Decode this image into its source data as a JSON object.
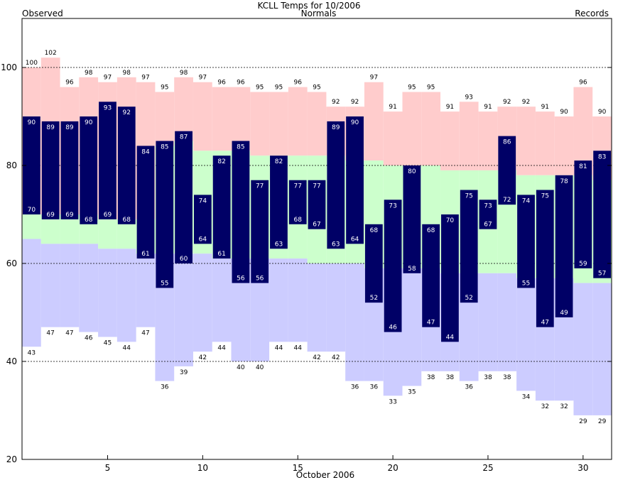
{
  "chart_data": {
    "type": "bar",
    "title": "KCLL Temps for 10/2006",
    "xlabel": "October 2006",
    "ylabel": "",
    "legend": {
      "observed": "Observed",
      "normals": "Normals",
      "records": "Records"
    },
    "legend_placement": "top",
    "x": [
      1,
      2,
      3,
      4,
      5,
      6,
      7,
      8,
      9,
      10,
      11,
      12,
      13,
      14,
      15,
      16,
      17,
      18,
      19,
      20,
      21,
      22,
      23,
      24,
      25,
      26,
      27,
      28,
      29,
      30,
      31
    ],
    "xlim": [
      0.5,
      31.5
    ],
    "xticks": [
      5,
      10,
      15,
      20,
      25,
      30
    ],
    "ylim": [
      20,
      110
    ],
    "yticks": [
      20,
      40,
      60,
      80,
      100
    ],
    "grid_y": [
      40,
      60,
      80,
      100
    ],
    "series": [
      {
        "name": "Records",
        "key": "record_high",
        "values": [
          100,
          102,
          96,
          98,
          97,
          98,
          97,
          95,
          98,
          97,
          96,
          96,
          95,
          95,
          96,
          95,
          92,
          92,
          97,
          91,
          95,
          95,
          91,
          93,
          91,
          92,
          92,
          91,
          90,
          96,
          90
        ]
      },
      {
        "name": "Records",
        "key": "record_low",
        "values": [
          43,
          47,
          47,
          46,
          45,
          44,
          47,
          36,
          39,
          42,
          44,
          40,
          40,
          44,
          44,
          42,
          42,
          36,
          36,
          33,
          35,
          38,
          38,
          36,
          38,
          38,
          34,
          32,
          32,
          29,
          29
        ]
      },
      {
        "name": "Normals",
        "key": "normal_high",
        "values": [
          70,
          70,
          70,
          70,
          69,
          69,
          69,
          84,
          85,
          83,
          83,
          83,
          82,
          82,
          82,
          82,
          82,
          81,
          81,
          80,
          80,
          80,
          79,
          79,
          79,
          79,
          78,
          78,
          78,
          78,
          77
        ]
      },
      {
        "name": "Normals",
        "key": "normal_low",
        "values": [
          65,
          64,
          64,
          64,
          63,
          63,
          62,
          62,
          62,
          62,
          61,
          61,
          61,
          61,
          61,
          60,
          60,
          60,
          59,
          59,
          59,
          59,
          58,
          58,
          58,
          58,
          57,
          57,
          57,
          56,
          56
        ]
      },
      {
        "name": "Observed",
        "key": "observed_high",
        "values": [
          90,
          89,
          89,
          90,
          93,
          92,
          84,
          85,
          87,
          74,
          82,
          85,
          77,
          82,
          77,
          77,
          89,
          90,
          68,
          73,
          80,
          68,
          70,
          75,
          73,
          86,
          74,
          75,
          78,
          81,
          83
        ]
      },
      {
        "name": "Observed",
        "key": "observed_low",
        "values": [
          70,
          69,
          69,
          68,
          69,
          68,
          61,
          55,
          60,
          64,
          61,
          56,
          56,
          63,
          68,
          67,
          63,
          64,
          52,
          46,
          58,
          47,
          44,
          52,
          67,
          72,
          55,
          47,
          49,
          59,
          57
        ]
      }
    ],
    "colors": {
      "record": "#ffcccc",
      "normal": "#ccffcc",
      "record_low_band": "#ccccff",
      "observed": "#000066",
      "observed_label": "#000066",
      "normals_label": "#006600",
      "records_label": "#cc88cc",
      "grid": "#000000",
      "observed_text": "#ffffff",
      "record_text": "#000000"
    }
  }
}
